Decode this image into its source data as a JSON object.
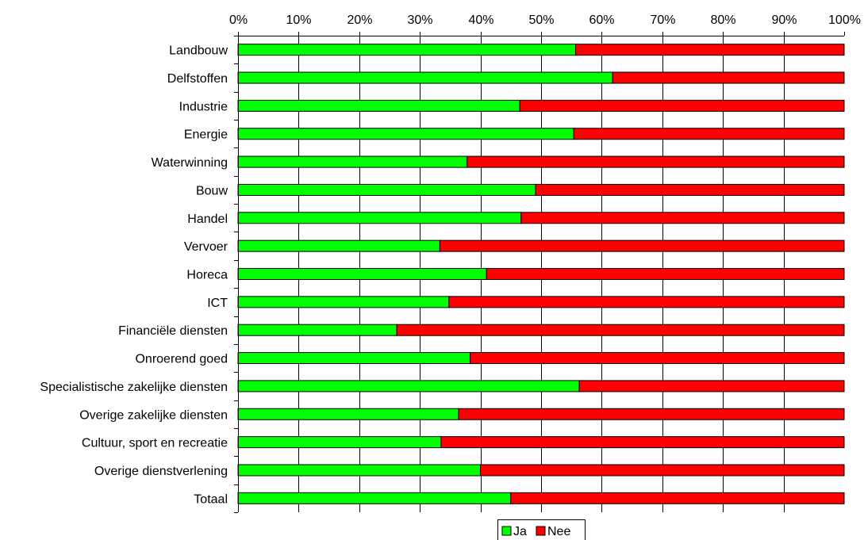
{
  "chart_data": {
    "type": "bar",
    "orientation": "horizontal",
    "stacked": "percent",
    "categories": [
      "Landbouw",
      "Delfstoffen",
      "Industrie",
      "Energie",
      "Waterwinning",
      "Bouw",
      "Handel",
      "Vervoer",
      "Horeca",
      "ICT",
      "Financiële diensten",
      "Onroerend goed",
      "Specialistische zakelijke diensten",
      "Overige zakelijke diensten",
      "Cultuur, sport en recreatie",
      "Overige dienstverlening",
      "Totaal"
    ],
    "series": [
      {
        "name": "Ja",
        "color": "#00ff00",
        "values": [
          55.7,
          61.8,
          46.5,
          55.4,
          37.8,
          49.1,
          46.7,
          33.3,
          41.0,
          34.8,
          26.2,
          38.3,
          56.3,
          36.4,
          33.5,
          40.0,
          45.0
        ]
      },
      {
        "name": "Nee",
        "color": "#ff0000",
        "values": [
          44.3,
          38.2,
          53.5,
          44.6,
          62.2,
          50.9,
          53.3,
          66.7,
          59.0,
          65.2,
          73.8,
          61.7,
          43.7,
          63.6,
          66.5,
          60.0,
          55.0
        ]
      }
    ],
    "xlim": [
      0,
      100
    ],
    "xticks": [
      "0%",
      "10%",
      "20%",
      "30%",
      "40%",
      "50%",
      "60%",
      "70%",
      "80%",
      "90%",
      "100%"
    ],
    "x_axis_position": "top",
    "grid": "vertical",
    "legend": "bottom-center",
    "title": "",
    "xlabel": "",
    "ylabel": ""
  }
}
